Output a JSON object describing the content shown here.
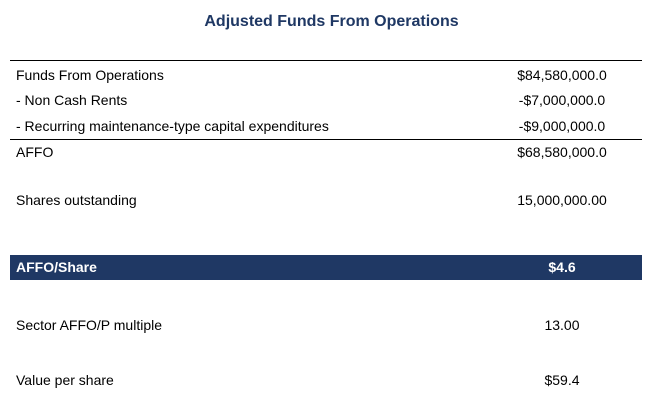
{
  "title": "Adjusted Funds From Operations",
  "rows": [
    [
      "Funds From Operations",
      "$84,580,000.0"
    ],
    [
      "- Non Cash Rents",
      "-$7,000,000.0"
    ],
    [
      "- Recurring maintenance-type capital expenditures",
      "-$9,000,000.0"
    ],
    [
      "AFFO",
      "$68,580,000.0"
    ],
    [
      "Shares outstanding",
      "15,000,000.00"
    ],
    [
      "AFFO/Share",
      "$4.6"
    ],
    [
      "Sector AFFO/P multiple",
      "13.00"
    ],
    [
      "Value per share",
      "$59.4"
    ]
  ]
}
